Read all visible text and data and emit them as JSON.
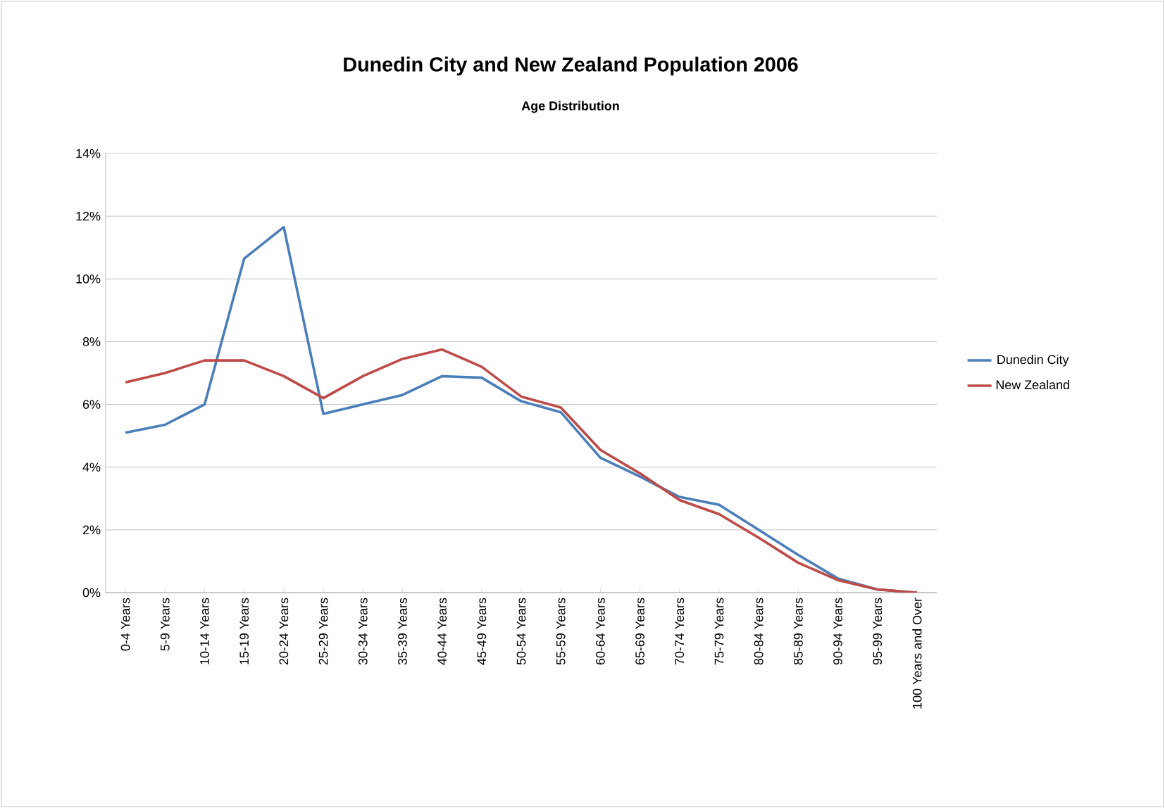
{
  "chart_data": {
    "type": "line",
    "title": "Dunedin City and New Zealand Population 2006",
    "subtitle": "Age Distribution",
    "categories": [
      "0-4 Years",
      "5-9 Years",
      "10-14 Years",
      "15-19 Years",
      "20-24 Years",
      "25-29 Years",
      "30-34 Years",
      "35-39 Years",
      "40-44 Years",
      "45-49 Years",
      "50-54 Years",
      "55-59 Years",
      "60-64 Years",
      "65-69 Years",
      "70-74 Years",
      "75-79 Years",
      "80-84 Years",
      "85-89 Years",
      "90-94 Years",
      "95-99 Years",
      "100 Years and Over"
    ],
    "series": [
      {
        "name": "Dunedin City",
        "color": "#4a7ebb",
        "values": [
          5.1,
          5.35,
          6.0,
          10.65,
          11.65,
          5.7,
          6.0,
          6.3,
          6.9,
          6.85,
          6.1,
          5.75,
          4.3,
          3.7,
          3.05,
          2.8,
          2.0,
          1.2,
          0.45,
          0.1,
          0.0
        ]
      },
      {
        "name": "New Zealand",
        "color": "#be4b48",
        "values": [
          6.7,
          7.0,
          7.4,
          7.4,
          6.9,
          6.2,
          6.9,
          7.45,
          7.75,
          7.2,
          6.25,
          5.9,
          4.55,
          3.8,
          2.95,
          2.5,
          1.75,
          0.95,
          0.4,
          0.1,
          0.0
        ]
      }
    ],
    "ylim": [
      0,
      14
    ],
    "yticks": [
      {
        "value": 0,
        "label": "0%"
      },
      {
        "value": 2,
        "label": "2%"
      },
      {
        "value": 4,
        "label": "4%"
      },
      {
        "value": 6,
        "label": "6%"
      },
      {
        "value": 8,
        "label": "8%"
      },
      {
        "value": 10,
        "label": "10%"
      },
      {
        "value": 12,
        "label": "12%"
      },
      {
        "value": 14,
        "label": "14%"
      }
    ],
    "grid": "y",
    "legend": "right",
    "marker": "none",
    "line_style": "solid"
  }
}
